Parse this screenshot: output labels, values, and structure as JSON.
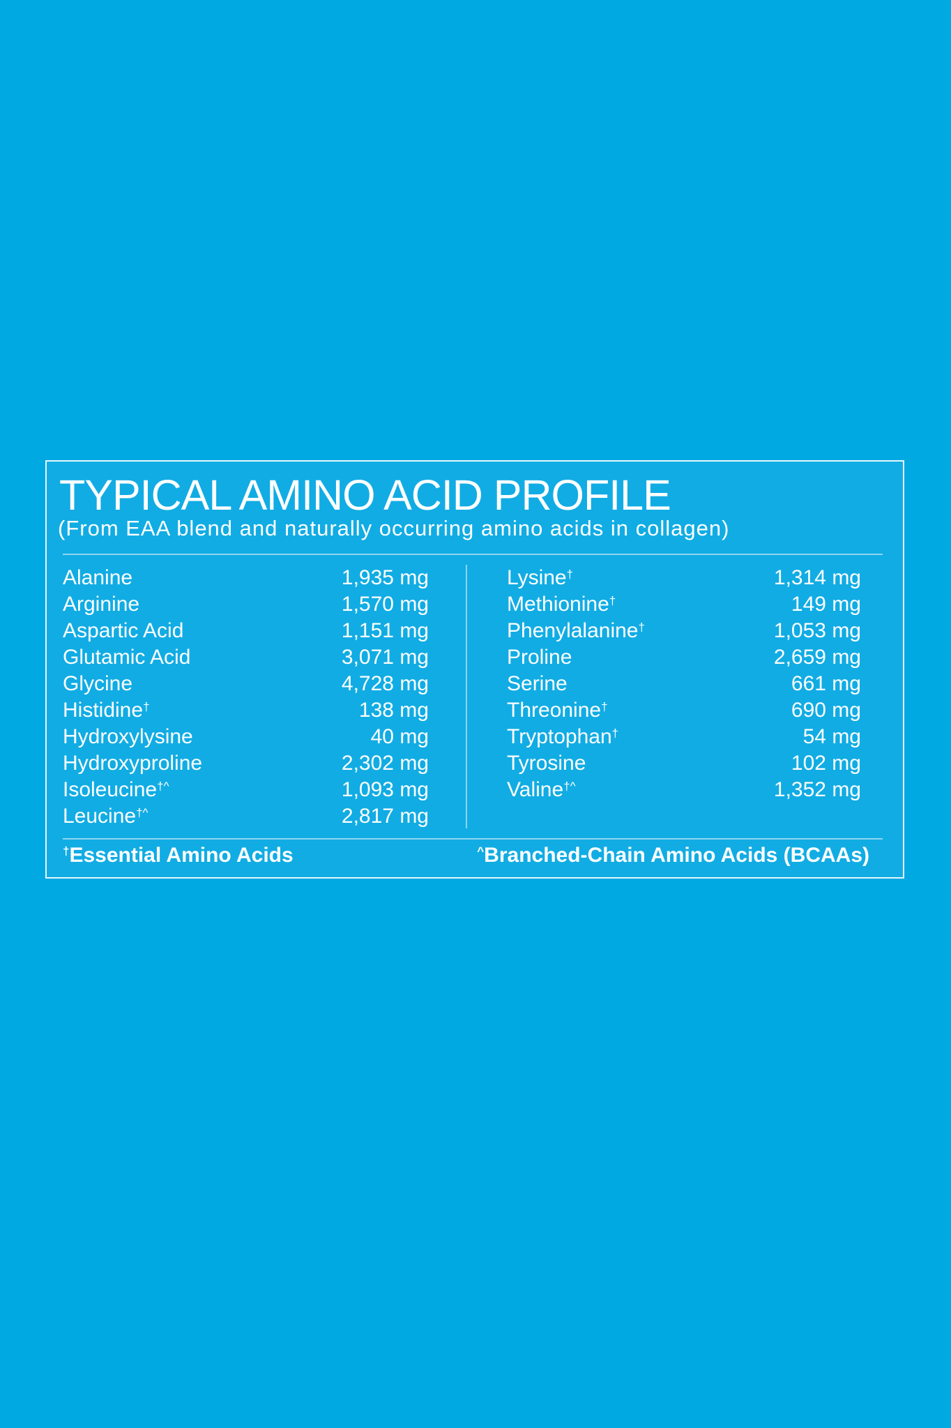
{
  "title": "TYPICAL AMINO ACID PROFILE",
  "subtitle": "(From EAA blend and naturally occurring amino acids in collagen)",
  "left": [
    {
      "name": "Alanine",
      "mark": "",
      "value": "1,935 mg"
    },
    {
      "name": "Arginine",
      "mark": "",
      "value": "1,570 mg"
    },
    {
      "name": "Aspartic Acid",
      "mark": "",
      "value": "1,151 mg"
    },
    {
      "name": "Glutamic Acid",
      "mark": "",
      "value": "3,071 mg"
    },
    {
      "name": "Glycine",
      "mark": "",
      "value": "4,728 mg"
    },
    {
      "name": "Histidine",
      "mark": "†",
      "value": "138 mg"
    },
    {
      "name": "Hydroxylysine",
      "mark": "",
      "value": "40 mg"
    },
    {
      "name": "Hydroxyproline",
      "mark": "",
      "value": "2,302 mg"
    },
    {
      "name": "Isoleucine",
      "mark": "†^",
      "value": "1,093 mg"
    },
    {
      "name": "Leucine",
      "mark": "†^",
      "value": "2,817 mg"
    }
  ],
  "right": [
    {
      "name": "Lysine",
      "mark": "†",
      "value": "1,314 mg"
    },
    {
      "name": "Methionine",
      "mark": "†",
      "value": "149 mg"
    },
    {
      "name": "Phenylalanine",
      "mark": "†",
      "value": "1,053 mg"
    },
    {
      "name": "Proline",
      "mark": "",
      "value": "2,659 mg"
    },
    {
      "name": "Serine",
      "mark": "",
      "value": "661 mg"
    },
    {
      "name": "Threonine",
      "mark": "†",
      "value": "690 mg"
    },
    {
      "name": "Tryptophan",
      "mark": "†",
      "value": "54 mg"
    },
    {
      "name": "Tyrosine",
      "mark": "",
      "value": "102 mg"
    },
    {
      "name": "Valine",
      "mark": "†^",
      "value": "1,352 mg"
    }
  ],
  "footnotes": {
    "essential_mark": "†",
    "essential": "Essential Amino Acids",
    "bcaa_mark": "^",
    "bcaa": "Branched-Chain Amino Acids (BCAAs)"
  },
  "colors": {
    "background": "#00A9E2",
    "panel": "#11ACE4",
    "text": "#FFFFFF"
  }
}
